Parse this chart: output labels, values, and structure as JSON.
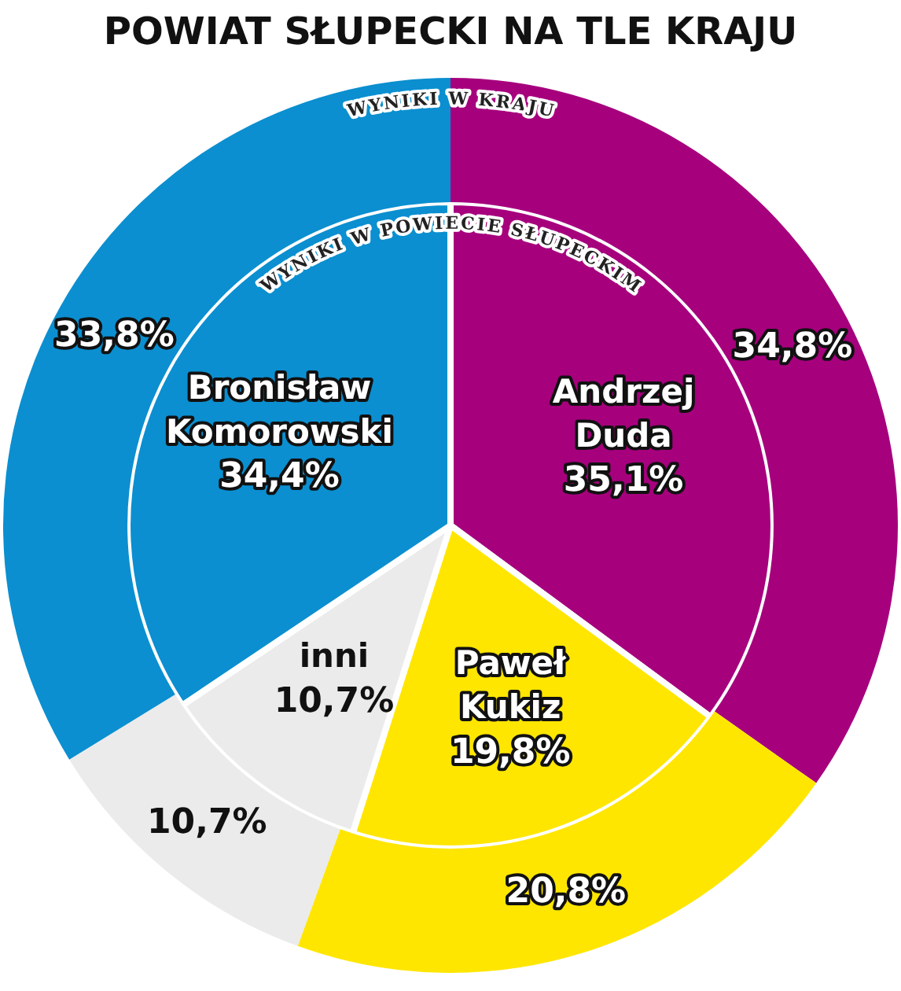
{
  "chart_data": {
    "type": "pie",
    "title": "POWIAT SŁUPECKI NA TLE KRAJU",
    "categories": [
      "Andrzej Duda",
      "Paweł Kukiz",
      "inni",
      "Bronisław Komorowski"
    ],
    "series": [
      {
        "name": "WYNIKI W KRAJU",
        "colors": [
          "#a6007d",
          "#ffe600",
          "#ebebeb",
          "#0b8fd0"
        ],
        "values": [
          34.8,
          20.8,
          10.7,
          33.8
        ],
        "value_labels": [
          "34,8%",
          "20,8%",
          "10,7%",
          "33,8%"
        ]
      },
      {
        "name": "WYNIKI W POWIECIE SŁUPECKIM",
        "colors": [
          "#a6007d",
          "#ffe600",
          "#ebebeb",
          "#0b8fd0"
        ],
        "values": [
          35.1,
          19.8,
          10.7,
          34.4
        ],
        "value_labels": [
          "35,1%",
          "19,8%",
          "10,7%",
          "34,4%"
        ]
      }
    ],
    "legend": false
  }
}
